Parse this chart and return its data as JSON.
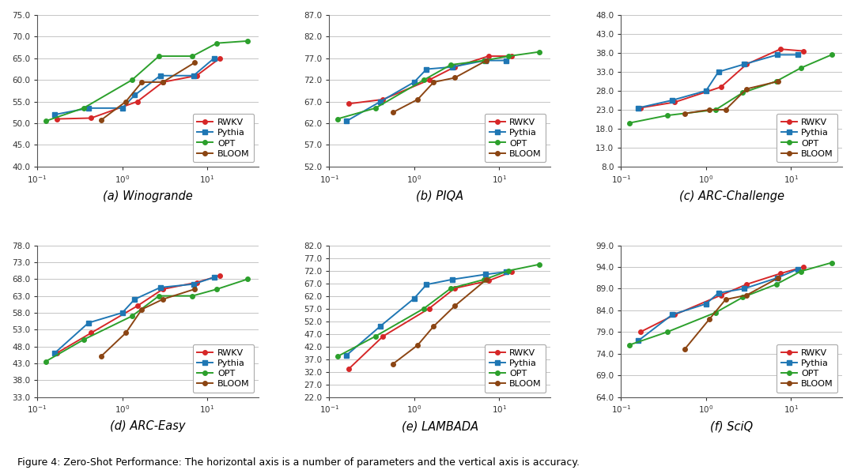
{
  "plots": [
    {
      "title": "(a) Winogrande",
      "yticks": [
        40.0,
        45.0,
        50.0,
        55.0,
        60.0,
        65.0,
        70.0,
        75.0
      ],
      "legend_loc": "lower right",
      "series": {
        "RWKV": {
          "x": [
            0.169,
            0.43,
            1.5,
            3.0,
            7.5,
            14.0
          ],
          "y": [
            51.0,
            51.2,
            55.0,
            59.5,
            61.0,
            65.0
          ],
          "color": "#d62728",
          "marker": "o"
        },
        "Pythia": {
          "x": [
            0.16,
            0.4,
            1.0,
            1.4,
            2.8,
            6.9,
            12.0
          ],
          "y": [
            52.0,
            53.5,
            53.5,
            56.5,
            61.0,
            61.0,
            65.0
          ],
          "color": "#1f77b4",
          "marker": "s"
        },
        "OPT": {
          "x": [
            0.125,
            0.35,
            1.3,
            2.7,
            6.7,
            13.0,
            30.0
          ],
          "y": [
            50.5,
            53.5,
            60.0,
            65.5,
            65.5,
            68.5,
            69.0
          ],
          "color": "#2ca02c",
          "marker": "o"
        },
        "BLOOM": {
          "x": [
            0.56,
            1.1,
            1.7,
            3.0,
            7.1
          ],
          "y": [
            50.7,
            55.0,
            59.5,
            59.5,
            64.0
          ],
          "color": "#8b4513",
          "marker": "o"
        }
      }
    },
    {
      "title": "(b) PIQA",
      "yticks": [
        52.0,
        57.0,
        62.0,
        67.0,
        72.0,
        77.0,
        82.0,
        87.0
      ],
      "legend_loc": "lower right",
      "series": {
        "RWKV": {
          "x": [
            0.169,
            0.43,
            1.5,
            3.0,
            7.5,
            14.0
          ],
          "y": [
            66.5,
            67.5,
            72.0,
            75.0,
            77.5,
            77.5
          ],
          "color": "#d62728",
          "marker": "o"
        },
        "Pythia": {
          "x": [
            0.16,
            0.4,
            1.0,
            1.4,
            2.8,
            6.9,
            12.0
          ],
          "y": [
            62.5,
            67.0,
            71.5,
            74.5,
            75.0,
            76.5,
            76.5
          ],
          "color": "#1f77b4",
          "marker": "s"
        },
        "OPT": {
          "x": [
            0.125,
            0.35,
            1.3,
            2.7,
            6.7,
            13.0,
            30.0
          ],
          "y": [
            63.0,
            65.5,
            72.0,
            75.5,
            76.5,
            77.5,
            78.5
          ],
          "color": "#2ca02c",
          "marker": "o"
        },
        "BLOOM": {
          "x": [
            0.56,
            1.1,
            1.7,
            3.0,
            7.1
          ],
          "y": [
            64.5,
            67.5,
            71.5,
            72.5,
            76.5
          ],
          "color": "#8b4513",
          "marker": "o"
        }
      }
    },
    {
      "title": "(c) ARC-Challenge",
      "yticks": [
        8.0,
        13.0,
        18.0,
        23.0,
        28.0,
        33.0,
        38.0,
        43.0,
        48.0
      ],
      "legend_loc": "lower right",
      "series": {
        "RWKV": {
          "x": [
            0.169,
            0.43,
            1.5,
            3.0,
            7.5,
            14.0
          ],
          "y": [
            23.5,
            25.0,
            29.0,
            35.0,
            39.0,
            38.5
          ],
          "color": "#d62728",
          "marker": "o"
        },
        "Pythia": {
          "x": [
            0.16,
            0.4,
            1.0,
            1.4,
            2.8,
            6.9,
            12.0
          ],
          "y": [
            23.5,
            25.5,
            28.0,
            33.0,
            35.0,
            37.5,
            37.5
          ],
          "color": "#1f77b4",
          "marker": "s"
        },
        "OPT": {
          "x": [
            0.125,
            0.35,
            1.3,
            2.7,
            6.7,
            13.0,
            30.0
          ],
          "y": [
            19.5,
            21.5,
            23.0,
            27.5,
            30.5,
            34.0,
            37.5
          ],
          "color": "#2ca02c",
          "marker": "o"
        },
        "BLOOM": {
          "x": [
            0.56,
            1.1,
            1.7,
            3.0,
            7.1
          ],
          "y": [
            22.0,
            23.0,
            23.0,
            28.5,
            30.5
          ],
          "color": "#8b4513",
          "marker": "o"
        }
      }
    },
    {
      "title": "(d) ARC-Easy",
      "yticks": [
        33.0,
        38.0,
        43.0,
        48.0,
        53.0,
        58.0,
        63.0,
        68.0,
        73.0,
        78.0
      ],
      "legend_loc": "lower right",
      "series": {
        "RWKV": {
          "x": [
            0.169,
            0.43,
            1.5,
            3.0,
            7.5,
            14.0
          ],
          "y": [
            46.0,
            52.0,
            60.0,
            65.0,
            67.0,
            69.0
          ],
          "color": "#d62728",
          "marker": "o"
        },
        "Pythia": {
          "x": [
            0.16,
            0.4,
            1.0,
            1.4,
            2.8,
            6.9,
            12.0
          ],
          "y": [
            46.0,
            55.0,
            58.0,
            62.0,
            65.5,
            66.5,
            68.5
          ],
          "color": "#1f77b4",
          "marker": "s"
        },
        "OPT": {
          "x": [
            0.125,
            0.35,
            1.3,
            2.7,
            6.7,
            13.0,
            30.0
          ],
          "y": [
            43.5,
            50.0,
            57.0,
            63.0,
            63.0,
            65.0,
            68.0
          ],
          "color": "#2ca02c",
          "marker": "o"
        },
        "BLOOM": {
          "x": [
            0.56,
            1.1,
            1.7,
            3.0,
            7.1
          ],
          "y": [
            45.0,
            52.0,
            59.0,
            62.0,
            65.0
          ],
          "color": "#8b4513",
          "marker": "o"
        }
      }
    },
    {
      "title": "(e) LAMBADA",
      "yticks": [
        22.0,
        27.0,
        32.0,
        37.0,
        42.0,
        47.0,
        52.0,
        57.0,
        62.0,
        67.0,
        72.0,
        77.0,
        82.0
      ],
      "legend_loc": "lower right",
      "series": {
        "RWKV": {
          "x": [
            0.169,
            0.43,
            1.5,
            3.0,
            7.5,
            14.0
          ],
          "y": [
            33.0,
            46.0,
            57.0,
            65.0,
            68.0,
            71.5
          ],
          "color": "#d62728",
          "marker": "o"
        },
        "Pythia": {
          "x": [
            0.16,
            0.4,
            1.0,
            1.4,
            2.8,
            6.9,
            12.0
          ],
          "y": [
            38.5,
            50.0,
            61.0,
            66.5,
            68.5,
            70.5,
            71.5
          ],
          "color": "#1f77b4",
          "marker": "s"
        },
        "OPT": {
          "x": [
            0.125,
            0.35,
            1.3,
            2.7,
            6.7,
            13.0,
            30.0
          ],
          "y": [
            38.0,
            46.0,
            57.0,
            65.0,
            68.5,
            72.0,
            74.5
          ],
          "color": "#2ca02c",
          "marker": "o"
        },
        "BLOOM": {
          "x": [
            0.56,
            1.1,
            1.7,
            3.0,
            7.1
          ],
          "y": [
            35.0,
            42.5,
            50.0,
            58.0,
            68.5
          ],
          "color": "#8b4513",
          "marker": "o"
        }
      }
    },
    {
      "title": "(f) SciQ",
      "yticks": [
        64.0,
        69.0,
        74.0,
        79.0,
        84.0,
        89.0,
        94.0,
        99.0
      ],
      "legend_loc": "lower right",
      "series": {
        "RWKV": {
          "x": [
            0.169,
            0.43,
            1.5,
            3.0,
            7.5,
            14.0
          ],
          "y": [
            79.0,
            83.0,
            87.5,
            90.0,
            92.5,
            94.0
          ],
          "color": "#d62728",
          "marker": "o"
        },
        "Pythia": {
          "x": [
            0.16,
            0.4,
            1.0,
            1.4,
            2.8,
            6.9,
            12.0
          ],
          "y": [
            77.0,
            83.0,
            85.5,
            88.0,
            89.0,
            91.5,
            93.5
          ],
          "color": "#1f77b4",
          "marker": "s"
        },
        "OPT": {
          "x": [
            0.125,
            0.35,
            1.3,
            2.7,
            6.7,
            13.0,
            30.0
          ],
          "y": [
            76.0,
            79.0,
            83.5,
            87.0,
            90.0,
            93.0,
            95.0
          ],
          "color": "#2ca02c",
          "marker": "o"
        },
        "BLOOM": {
          "x": [
            0.56,
            1.1,
            1.7,
            3.0,
            7.1
          ],
          "y": [
            75.0,
            82.0,
            86.5,
            87.5,
            91.5
          ],
          "color": "#8b4513",
          "marker": "o"
        }
      }
    }
  ],
  "caption": "Figure 4: Zero-Shot Performance: The horizontal axis is a number of parameters and the vertical axis is accuracy.",
  "background_color": "#ffffff",
  "grid_color": "#bbbbbb",
  "legend_order": [
    "RWKV",
    "Pythia",
    "OPT",
    "BLOOM"
  ],
  "marker_size": 4,
  "line_width": 1.4
}
